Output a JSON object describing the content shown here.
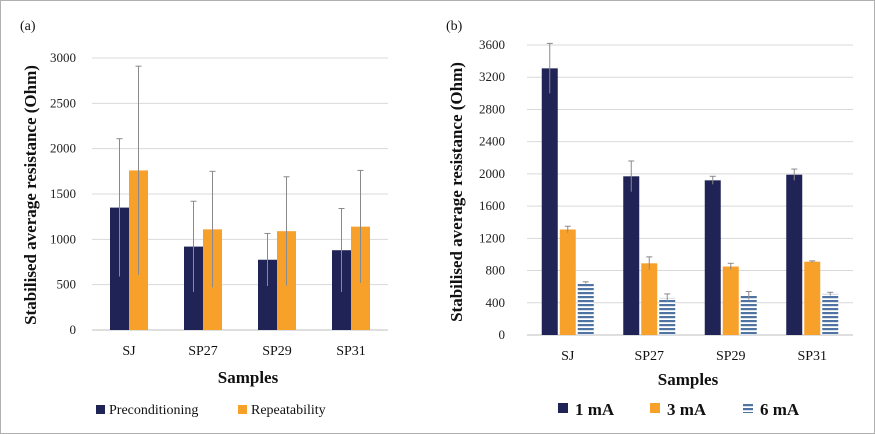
{
  "chart_data": [
    {
      "panel": "(a)",
      "type": "bar",
      "categories": [
        "SJ",
        "SP27",
        "SP29",
        "SP31"
      ],
      "xlabel": "Samples",
      "ylabel": "Stabilised average resistance (Ohm)",
      "ylim": [
        0,
        3000
      ],
      "yticks": [
        0,
        500,
        1000,
        1500,
        2000,
        2500,
        3000
      ],
      "grid": true,
      "legend_position": "bottom",
      "series": [
        {
          "name": "Preconditioning",
          "color": "#1f2356",
          "values": [
            1350,
            920,
            775,
            880
          ],
          "errors": [
            760,
            500,
            290,
            460
          ]
        },
        {
          "name": "Repeatability",
          "color": "#f7a12b",
          "values": [
            1760,
            1110,
            1090,
            1140
          ],
          "errors": [
            1150,
            640,
            600,
            620
          ]
        }
      ]
    },
    {
      "panel": "(b)",
      "type": "bar",
      "categories": [
        "SJ",
        "SP27",
        "SP29",
        "SP31"
      ],
      "xlabel": "Samples",
      "ylabel": "Stabilised average resistance (Ohm)",
      "ylim": [
        0,
        3600
      ],
      "yticks": [
        0,
        400,
        800,
        1200,
        1600,
        2000,
        2400,
        2800,
        3200,
        3600
      ],
      "grid": true,
      "legend_position": "bottom",
      "series": [
        {
          "name": "1 mA",
          "color": "#1f2356",
          "pattern": "solid",
          "values": [
            3310,
            1970,
            1920,
            1990
          ],
          "errors": [
            310,
            190,
            50,
            70
          ]
        },
        {
          "name": "3 mA",
          "color": "#f7a12b",
          "pattern": "solid",
          "values": [
            1310,
            890,
            850,
            910
          ],
          "errors": [
            40,
            80,
            40,
            10
          ]
        },
        {
          "name": "6 mA",
          "color": "#5b7fa9",
          "pattern": "horizontal-stripes",
          "values": [
            650,
            460,
            490,
            510
          ],
          "errors": [
            10,
            50,
            50,
            20
          ]
        }
      ]
    }
  ]
}
